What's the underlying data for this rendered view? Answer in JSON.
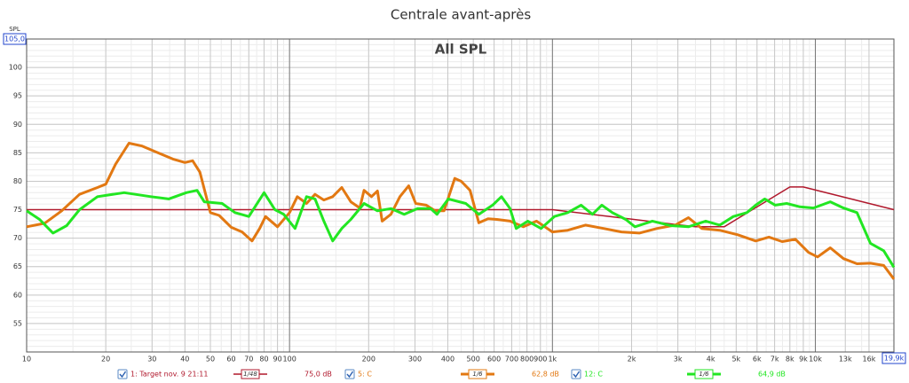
{
  "chart_data": {
    "type": "line",
    "title": "Centrale avant-après",
    "annotation": "All SPL",
    "y_label": "SPL",
    "xscale": "log",
    "grid": true,
    "xlim": [
      10,
      19900
    ],
    "ylim": [
      50,
      105
    ],
    "xticks": [
      10,
      20,
      30,
      40,
      50,
      60,
      70,
      80,
      90,
      100,
      200,
      300,
      400,
      500,
      600,
      700,
      800,
      900,
      {
        "value": 1000,
        "label": "1k"
      },
      {
        "value": 2000,
        "label": "2k"
      },
      {
        "value": 3000,
        "label": "3k"
      },
      {
        "value": 4000,
        "label": "4k"
      },
      {
        "value": 5000,
        "label": "5k"
      },
      {
        "value": 6000,
        "label": "6k"
      },
      {
        "value": 7000,
        "label": "7k"
      },
      {
        "value": 8000,
        "label": "8k"
      },
      {
        "value": 9000,
        "label": "9k"
      },
      {
        "value": 10000,
        "label": "10k"
      },
      {
        "value": 13000,
        "label": "13k"
      },
      {
        "value": 16000,
        "label": "16k"
      },
      {
        "value": 19900,
        "label": "19,9k"
      }
    ],
    "yticks": [
      55,
      60,
      65,
      70,
      75,
      80,
      85,
      90,
      95,
      100,
      {
        "value": 105,
        "label": "105,0"
      }
    ],
    "series": [
      {
        "name": "1: Target nov. 9 21:11",
        "color": "#b0182c",
        "smoothing": "1/48",
        "legend_value": "75,0 dB",
        "width": 1.5,
        "x": [
          10,
          1000,
          3500,
          4500,
          8000,
          9000,
          19900
        ],
        "values": [
          75,
          75,
          72,
          72,
          79,
          79,
          75
        ]
      },
      {
        "name": "5: C",
        "color": "#e27812",
        "smoothing": "1/6",
        "legend_value": "62,8 dB",
        "width": 3,
        "x": [
          10,
          11.7,
          13.6,
          15.9,
          18.6,
          20,
          21.8,
          24.5,
          27.5,
          30.9,
          36,
          40,
          42.8,
          45.6,
          50,
          54,
          60,
          66,
          72,
          77,
          81,
          90,
          100,
          107,
          116,
          125,
          135,
          146,
          158,
          171,
          185,
          192,
          205,
          216,
          225,
          243,
          263,
          284,
          302,
          331,
          358,
          387,
          425,
          450,
          486,
          525,
          569,
          615,
          690,
          775,
          870,
          1000,
          1144,
          1335,
          1565,
          1830,
          2140,
          2500,
          2930,
          3290,
          3700,
          4330,
          5070,
          5930,
          6660,
          7480,
          8400,
          9420,
          10200,
          11400,
          12800,
          14400,
          16200,
          18200,
          19900
        ],
        "values": [
          72.0,
          72.6,
          74.8,
          77.7,
          78.9,
          79.5,
          83,
          86.7,
          86.2,
          85.2,
          83.9,
          83.3,
          83.6,
          81.6,
          74.5,
          74,
          71.9,
          71.1,
          69.5,
          71.7,
          73.8,
          72,
          74.5,
          77.3,
          76.1,
          77.7,
          76.7,
          77.3,
          78.9,
          76.4,
          75.3,
          78.4,
          77.3,
          78.3,
          73.0,
          74.2,
          77.3,
          79.2,
          76.1,
          75.8,
          74.8,
          74.8,
          80.5,
          80,
          78.4,
          72.7,
          73.4,
          73.3,
          73.0,
          72.0,
          73.0,
          71.1,
          71.4,
          72.3,
          71.7,
          71.1,
          70.9,
          71.7,
          72.3,
          73.6,
          71.7,
          71.4,
          70.6,
          69.5,
          70.2,
          69.4,
          69.8,
          67.5,
          66.7,
          68.3,
          66.4,
          65.5,
          65.6,
          65.2,
          62.8
        ]
      },
      {
        "name": "12: C",
        "color": "#22e622",
        "smoothing": "1/6",
        "legend_value": "64,9 dB",
        "width": 3,
        "x": [
          10,
          11.2,
          12.6,
          14.2,
          15.9,
          18.6,
          23.5,
          29.7,
          34.7,
          40.5,
          44.5,
          47.4,
          55.4,
          62,
          70,
          80,
          88,
          95,
          105,
          116,
          125,
          135,
          146,
          158,
          171,
          192,
          216,
          243,
          273,
          307,
          344,
          364,
          402,
          468,
          525,
          592,
          640,
          690,
          728,
          806,
          905,
          1017,
          1144,
          1285,
          1420,
          1540,
          1690,
          1900,
          2060,
          2400,
          2820,
          3290,
          3830,
          4330,
          4880,
          5490,
          5930,
          6420,
          7040,
          7780,
          8740,
          9830,
          11400,
          12800,
          14400,
          16200,
          18200,
          19900
        ],
        "values": [
          74.8,
          73.3,
          70.9,
          72.2,
          75,
          77.3,
          78,
          77.3,
          76.9,
          78,
          78.4,
          76.4,
          76.1,
          74.5,
          73.8,
          78,
          75,
          74.2,
          71.7,
          77.3,
          76.9,
          73,
          69.5,
          71.7,
          73.3,
          76.1,
          74.8,
          75.2,
          74.2,
          75.2,
          75.2,
          74.2,
          76.9,
          76.1,
          74.2,
          75.8,
          77.3,
          75.2,
          71.7,
          73,
          71.7,
          73.8,
          74.5,
          75.8,
          74.2,
          75.8,
          74.5,
          73.3,
          72,
          73,
          72.2,
          72,
          73,
          72.3,
          73.8,
          74.5,
          75.8,
          76.9,
          75.8,
          76.1,
          75.5,
          75.3,
          76.4,
          75.3,
          74.5,
          69.1,
          67.8,
          64.9
        ]
      }
    ]
  }
}
